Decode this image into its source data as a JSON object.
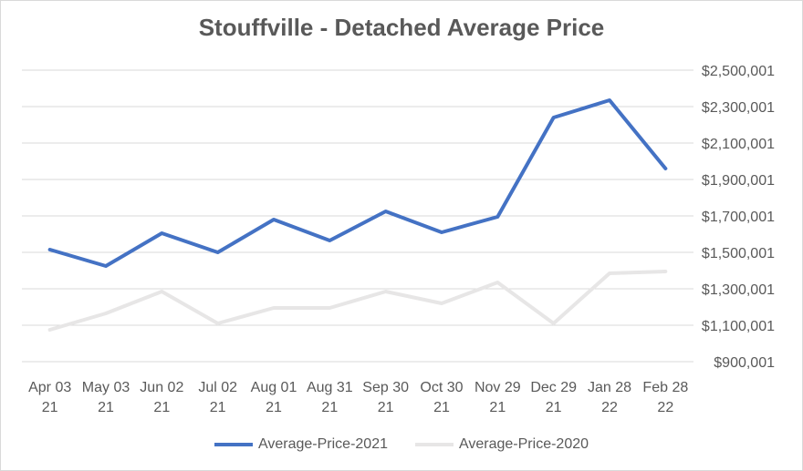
{
  "chart_data": {
    "type": "line",
    "title": "Stouffville - Detached Average Price",
    "xlabel": "",
    "ylabel": "",
    "categories": [
      [
        "Apr 03",
        "21"
      ],
      [
        "May 03",
        "21"
      ],
      [
        "Jun 02",
        "21"
      ],
      [
        "Jul 02",
        "21"
      ],
      [
        "Aug 01",
        "21"
      ],
      [
        "Aug 31",
        "21"
      ],
      [
        "Sep 30",
        "21"
      ],
      [
        "Oct 30",
        "21"
      ],
      [
        "Nov 29",
        "21"
      ],
      [
        "Dec 29",
        "21"
      ],
      [
        "Jan 28",
        "22"
      ],
      [
        "Feb 28",
        "22"
      ]
    ],
    "y_ticks": [
      "$900,001",
      "$1,100,001",
      "$1,300,001",
      "$1,500,001",
      "$1,700,001",
      "$1,900,001",
      "$2,100,001",
      "$2,300,001",
      "$2,500,001"
    ],
    "ylim": [
      900001,
      2500001
    ],
    "y_axis_side": "right",
    "grid": true,
    "legend_position": "bottom",
    "series": [
      {
        "name": "Average-Price-2021",
        "color": "#4472c4",
        "values": [
          1515000,
          1425000,
          1605000,
          1500000,
          1680000,
          1565000,
          1725000,
          1610000,
          1695000,
          2240000,
          2335000,
          1960000
        ]
      },
      {
        "name": "Average-Price-2020",
        "color": "#e7e6e6",
        "values": [
          1075000,
          1165000,
          1285000,
          1110000,
          1195000,
          1195000,
          1285000,
          1220000,
          1335000,
          1110000,
          1385000,
          1395000
        ]
      }
    ]
  }
}
